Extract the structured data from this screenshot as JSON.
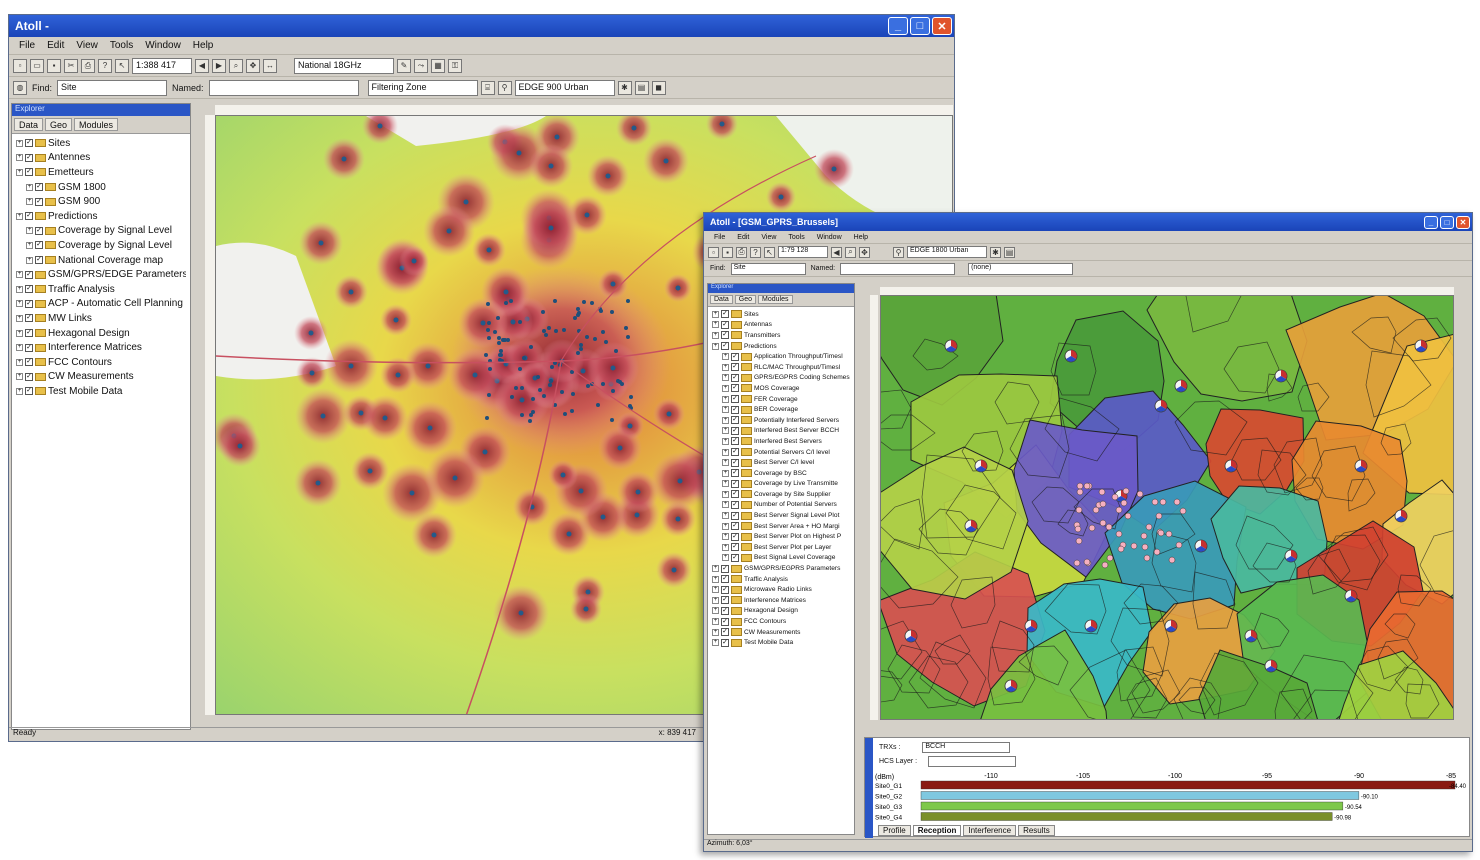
{
  "win1": {
    "title": "Atoll -",
    "menu": [
      "File",
      "Edit",
      "View",
      "Tools",
      "Window",
      "Help"
    ],
    "scale": "1:388 417",
    "band": "National 18GHz",
    "find_label": "Find:",
    "find_value": "Site",
    "named_label": "Named:",
    "zone": "Filtering Zone",
    "tech": "EDGE 900 Urban",
    "tabs": [
      "Data",
      "Geo",
      "Modules"
    ],
    "tree": [
      {
        "label": "Sites",
        "indent": 0
      },
      {
        "label": "Antennes",
        "indent": 0
      },
      {
        "label": "Emetteurs",
        "indent": 0
      },
      {
        "label": "GSM 1800",
        "indent": 1
      },
      {
        "label": "GSM 900",
        "indent": 1
      },
      {
        "label": "Predictions",
        "indent": 0
      },
      {
        "label": "Coverage by Signal Level",
        "indent": 1
      },
      {
        "label": "Coverage by Signal Level",
        "indent": 1
      },
      {
        "label": "National Coverage map",
        "indent": 1
      },
      {
        "label": "GSM/GPRS/EDGE Parameters",
        "indent": 0
      },
      {
        "label": "Traffic Analysis",
        "indent": 0
      },
      {
        "label": "ACP - Automatic Cell Planning",
        "indent": 0
      },
      {
        "label": "MW Links",
        "indent": 0
      },
      {
        "label": "Hexagonal Design",
        "indent": 0
      },
      {
        "label": "Interference Matrices",
        "indent": 0
      },
      {
        "label": "FCC Contours",
        "indent": 0
      },
      {
        "label": "CW Measurements",
        "indent": 0
      },
      {
        "label": "Test Mobile Data",
        "indent": 0
      }
    ],
    "status_left": "Ready",
    "status_right": "x: 839 417"
  },
  "win2": {
    "title": "Atoll - [GSM_GPRS_Brussels]",
    "menu": [
      "File",
      "Edit",
      "View",
      "Tools",
      "Window",
      "Help"
    ],
    "scale": "1:79 128",
    "tech": "EDGE 1800 Urban",
    "find_label": "Find:",
    "find_value": "Site",
    "named_label": "Named:",
    "zone": "(none)",
    "tabs": [
      "Data",
      "Geo",
      "Modules"
    ],
    "tree": [
      {
        "label": "Sites",
        "indent": 0
      },
      {
        "label": "Antennas",
        "indent": 0
      },
      {
        "label": "Transmitters",
        "indent": 0
      },
      {
        "label": "Predictions",
        "indent": 0
      },
      {
        "label": "Application Throughput/Timesl",
        "indent": 1
      },
      {
        "label": "RLC/MAC Throughput/Timesl",
        "indent": 1
      },
      {
        "label": "GPRS/EGPRS Coding Schemes",
        "indent": 1
      },
      {
        "label": "MOS Coverage",
        "indent": 1
      },
      {
        "label": "FER Coverage",
        "indent": 1
      },
      {
        "label": "BER Coverage",
        "indent": 1
      },
      {
        "label": "Potentially Interfered Servers",
        "indent": 1
      },
      {
        "label": "Interfered Best Server BCCH",
        "indent": 1
      },
      {
        "label": "Interfered Best Servers",
        "indent": 1
      },
      {
        "label": "Potential Servers C/I level",
        "indent": 1
      },
      {
        "label": "Best Server C/I level",
        "indent": 1
      },
      {
        "label": "Coverage by BSC",
        "indent": 1
      },
      {
        "label": "Coverage by Live Transmitte",
        "indent": 1
      },
      {
        "label": "Coverage by Site Supplier",
        "indent": 1
      },
      {
        "label": "Number of Potential Servers",
        "indent": 1
      },
      {
        "label": "Best Server Signal Level Plot",
        "indent": 1
      },
      {
        "label": "Best Server Area + HO Margi",
        "indent": 1
      },
      {
        "label": "Best Server Plot on Highest P",
        "indent": 1
      },
      {
        "label": "Best Server Plot per Layer",
        "indent": 1
      },
      {
        "label": "Best Signal Level Coverage",
        "indent": 1
      },
      {
        "label": "GSM/GPRS/EGPRS Parameters",
        "indent": 0
      },
      {
        "label": "Traffic Analysis",
        "indent": 0
      },
      {
        "label": "Microwave Radio Links",
        "indent": 0
      },
      {
        "label": "Interference Matrices",
        "indent": 0
      },
      {
        "label": "Hexagonal Design",
        "indent": 0
      },
      {
        "label": "FCC Contours",
        "indent": 0
      },
      {
        "label": "CW Measurements",
        "indent": 0
      },
      {
        "label": "Test Mobile Data",
        "indent": 0
      }
    ],
    "trx_label": "TRXs :",
    "trx_value": "BCCH",
    "hcs_label": "HCS Layer :",
    "axis_unit": "(dBm)",
    "axis_ticks": [
      "-110",
      "-105",
      "-100",
      "-95",
      "-90",
      "-85"
    ],
    "bars": [
      {
        "name": "Site0_G1",
        "value": "-84.40",
        "color": "#8a1a12",
        "frac": 1.0
      },
      {
        "name": "Site0_G2",
        "value": "-90.10",
        "color": "#7fc8e0",
        "frac": 0.82
      },
      {
        "name": "Site0_G3",
        "value": "-90.54",
        "color": "#7ec84a",
        "frac": 0.79
      },
      {
        "name": "Site0_G4",
        "value": "-90.98",
        "color": "#7a8f2a",
        "frac": 0.77
      }
    ],
    "bottom_tabs": [
      "Profile",
      "Reception",
      "Interference",
      "Results"
    ],
    "active_bottom_tab": "Reception",
    "status": "Azimuth: 6,03°"
  }
}
